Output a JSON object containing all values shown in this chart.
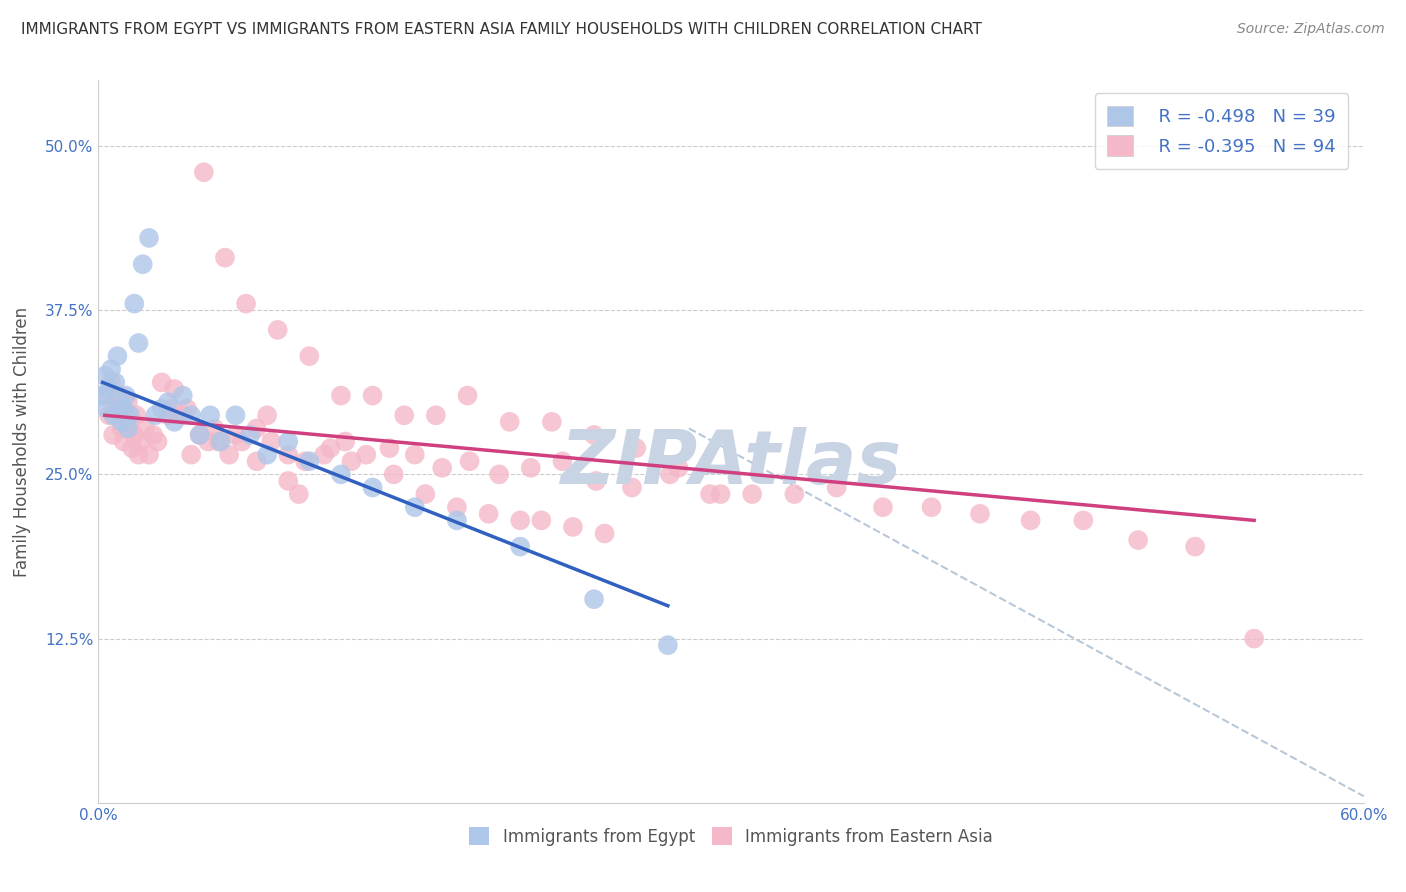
{
  "title": "IMMIGRANTS FROM EGYPT VS IMMIGRANTS FROM EASTERN ASIA FAMILY HOUSEHOLDS WITH CHILDREN CORRELATION CHART",
  "source": "Source: ZipAtlas.com",
  "ylabel": "Family Households with Children",
  "xlim": [
    0.0,
    0.6
  ],
  "ylim": [
    0.0,
    0.55
  ],
  "ytick_vals": [
    0.0,
    0.125,
    0.25,
    0.375,
    0.5
  ],
  "ytick_labels": [
    "",
    "12.5%",
    "25.0%",
    "37.5%",
    "50.0%"
  ],
  "xtick_vals": [
    0.0,
    0.1,
    0.2,
    0.3,
    0.4,
    0.5,
    0.6
  ],
  "xtick_labels": [
    "0.0%",
    "",
    "",
    "",
    "",
    "",
    "60.0%"
  ],
  "legend_r1": "R = -0.498",
  "legend_n1": "N = 39",
  "legend_r2": "R = -0.395",
  "legend_n2": "N = 94",
  "color_blue": "#AEC6E8",
  "color_pink": "#F4B8C8",
  "line_blue": "#3060C0",
  "line_pink": "#D04080",
  "line_dashed": "#B8C8D8",
  "title_color": "#333333",
  "source_color": "#888888",
  "watermark_color": "#C8D4E4",
  "blue_x": [
    0.002,
    0.003,
    0.004,
    0.005,
    0.006,
    0.007,
    0.008,
    0.009,
    0.01,
    0.011,
    0.012,
    0.013,
    0.014,
    0.015,
    0.017,
    0.019,
    0.021,
    0.024,
    0.027,
    0.03,
    0.033,
    0.036,
    0.04,
    0.044,
    0.048,
    0.053,
    0.058,
    0.065,
    0.072,
    0.08,
    0.09,
    0.1,
    0.115,
    0.13,
    0.15,
    0.17,
    0.2,
    0.235,
    0.27
  ],
  "blue_y": [
    0.31,
    0.325,
    0.3,
    0.315,
    0.33,
    0.295,
    0.32,
    0.34,
    0.305,
    0.29,
    0.3,
    0.31,
    0.285,
    0.295,
    0.38,
    0.35,
    0.41,
    0.43,
    0.295,
    0.3,
    0.305,
    0.29,
    0.31,
    0.295,
    0.28,
    0.295,
    0.275,
    0.295,
    0.28,
    0.265,
    0.275,
    0.26,
    0.25,
    0.24,
    0.225,
    0.215,
    0.195,
    0.155,
    0.12
  ],
  "pink_x": [
    0.003,
    0.005,
    0.006,
    0.007,
    0.008,
    0.009,
    0.01,
    0.011,
    0.012,
    0.013,
    0.014,
    0.015,
    0.016,
    0.017,
    0.018,
    0.019,
    0.02,
    0.022,
    0.024,
    0.026,
    0.028,
    0.03,
    0.033,
    0.036,
    0.04,
    0.044,
    0.048,
    0.052,
    0.057,
    0.062,
    0.068,
    0.075,
    0.082,
    0.09,
    0.098,
    0.107,
    0.117,
    0.127,
    0.138,
    0.15,
    0.163,
    0.176,
    0.19,
    0.205,
    0.22,
    0.236,
    0.253,
    0.271,
    0.29,
    0.31,
    0.33,
    0.35,
    0.372,
    0.395,
    0.418,
    0.442,
    0.467,
    0.493,
    0.52,
    0.548,
    0.07,
    0.085,
    0.1,
    0.115,
    0.13,
    0.145,
    0.16,
    0.175,
    0.195,
    0.215,
    0.235,
    0.255,
    0.275,
    0.295,
    0.05,
    0.06,
    0.035,
    0.042,
    0.055,
    0.065,
    0.075,
    0.08,
    0.09,
    0.095,
    0.11,
    0.12,
    0.14,
    0.155,
    0.17,
    0.185,
    0.2,
    0.21,
    0.225,
    0.24
  ],
  "pink_y": [
    0.31,
    0.295,
    0.32,
    0.28,
    0.3,
    0.295,
    0.31,
    0.285,
    0.275,
    0.295,
    0.305,
    0.285,
    0.27,
    0.28,
    0.295,
    0.265,
    0.275,
    0.285,
    0.265,
    0.28,
    0.275,
    0.32,
    0.295,
    0.315,
    0.295,
    0.265,
    0.28,
    0.275,
    0.275,
    0.265,
    0.275,
    0.285,
    0.275,
    0.265,
    0.26,
    0.265,
    0.275,
    0.265,
    0.27,
    0.265,
    0.255,
    0.26,
    0.25,
    0.255,
    0.26,
    0.245,
    0.24,
    0.25,
    0.235,
    0.235,
    0.235,
    0.24,
    0.225,
    0.225,
    0.22,
    0.215,
    0.215,
    0.2,
    0.195,
    0.125,
    0.38,
    0.36,
    0.34,
    0.31,
    0.31,
    0.295,
    0.295,
    0.31,
    0.29,
    0.29,
    0.28,
    0.27,
    0.255,
    0.235,
    0.48,
    0.415,
    0.3,
    0.3,
    0.285,
    0.28,
    0.26,
    0.295,
    0.245,
    0.235,
    0.27,
    0.26,
    0.25,
    0.235,
    0.225,
    0.22,
    0.215,
    0.215,
    0.21,
    0.205
  ],
  "blue_line_x": [
    0.002,
    0.27
  ],
  "blue_line_y": [
    0.32,
    0.15
  ],
  "pink_line_x": [
    0.003,
    0.548
  ],
  "pink_line_y": [
    0.295,
    0.215
  ],
  "dash_line_x": [
    0.28,
    0.6
  ],
  "dash_line_y": [
    0.285,
    0.005
  ]
}
